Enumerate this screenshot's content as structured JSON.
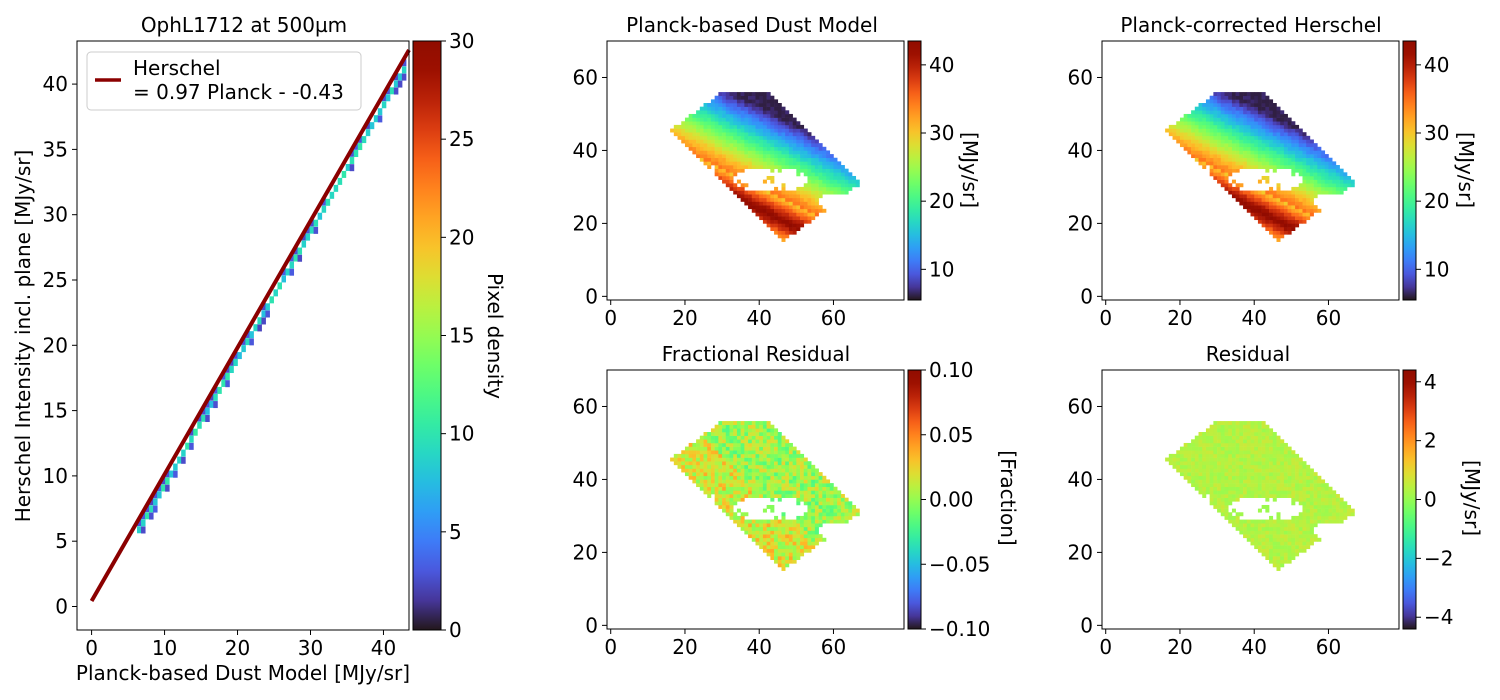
{
  "chart_data": [
    {
      "id": "scatter",
      "type": "heatmap",
      "title": "OphL1712 at 500µm",
      "xlabel": "Planck-based Dust Model [MJy/sr]",
      "ylabel": "Herschel Intensity incl. plane [MJy/sr]",
      "xlim": [
        -2,
        43.5
      ],
      "ylim": [
        -1.8,
        43.3
      ],
      "xticks": [
        0,
        10,
        20,
        30,
        40
      ],
      "yticks": [
        0,
        5,
        10,
        15,
        20,
        25,
        30,
        35,
        40
      ],
      "fit": {
        "slope": 0.97,
        "intercept": -0.43,
        "x_range": [
          0,
          43.5
        ]
      },
      "density_points_range": {
        "x": [
          6.5,
          43
        ],
        "note_fit_line_color": "#8b0000"
      },
      "legend": {
        "line1": "Herschel",
        "line2": "= 0.97 Planck - -0.43",
        "position": "top-left"
      },
      "colorbar": {
        "label": "Pixel density",
        "range": [
          0,
          30
        ],
        "ticks": [
          0,
          5,
          10,
          15,
          20,
          25,
          30
        ],
        "cmap": "turbo"
      }
    },
    {
      "id": "dust-model",
      "type": "heatmap",
      "title": "Planck-based Dust Model",
      "xlim": [
        -1,
        79
      ],
      "ylim": [
        -1,
        70
      ],
      "xticks": [
        0,
        20,
        40,
        60
      ],
      "yticks": [
        0,
        20,
        40,
        60
      ],
      "map": "intensity",
      "colorbar": {
        "label": "[MJy/sr]",
        "range": [
          5.5,
          43.5
        ],
        "ticks": [
          10,
          20,
          30,
          40
        ],
        "cmap": "turbo"
      }
    },
    {
      "id": "corrected-herschel",
      "type": "heatmap",
      "title": "Planck-corrected Herschel",
      "xlim": [
        -1,
        79
      ],
      "ylim": [
        -1,
        70
      ],
      "xticks": [
        0,
        20,
        40,
        60
      ],
      "yticks": [
        0,
        20,
        40,
        60
      ],
      "map": "intensity",
      "colorbar": {
        "label": "[MJy/sr]",
        "range": [
          5.5,
          43.5
        ],
        "ticks": [
          10,
          20,
          30,
          40
        ],
        "cmap": "turbo"
      }
    },
    {
      "id": "fractional-residual",
      "type": "heatmap",
      "title": "Fractional Residual",
      "xlim": [
        -1,
        79
      ],
      "ylim": [
        -1,
        70
      ],
      "xticks": [
        0,
        20,
        40,
        60
      ],
      "yticks": [
        0,
        20,
        40,
        60
      ],
      "map": "fracres",
      "colorbar": {
        "label": "[Fraction]",
        "range": [
          -0.1,
          0.1
        ],
        "ticks": [
          -0.1,
          -0.05,
          0.0,
          0.05,
          0.1
        ],
        "tick_decimals": 2,
        "cmap": "turbo"
      }
    },
    {
      "id": "residual",
      "type": "heatmap",
      "title": "Residual",
      "xlim": [
        -1,
        79
      ],
      "ylim": [
        -1,
        70
      ],
      "xticks": [
        0,
        20,
        40,
        60
      ],
      "yticks": [
        0,
        20,
        40,
        60
      ],
      "map": "res",
      "colorbar": {
        "label": "[MJy/sr]",
        "range": [
          -4.4,
          4.4
        ],
        "ticks": [
          -4,
          -2,
          0,
          2,
          4
        ],
        "cmap": "turbo"
      }
    }
  ]
}
